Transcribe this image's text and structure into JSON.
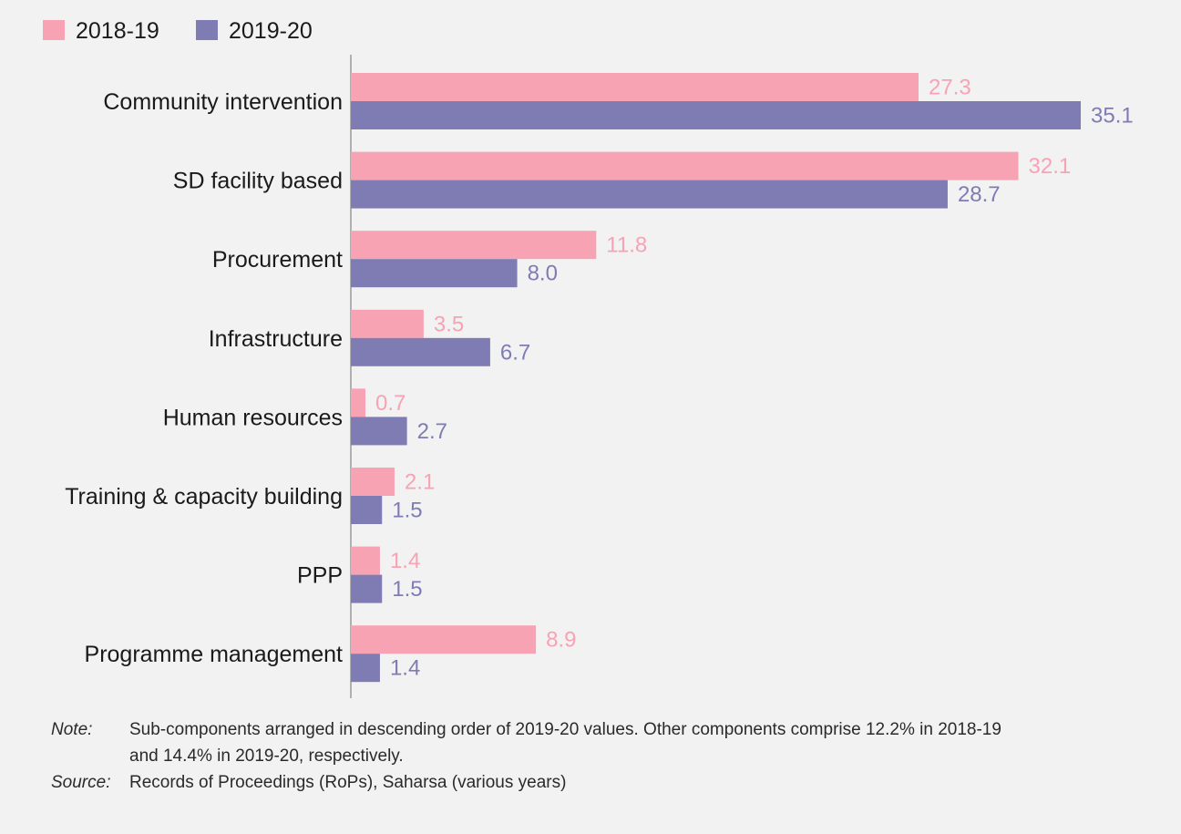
{
  "chart_data": {
    "type": "bar",
    "orientation": "horizontal",
    "categories": [
      "Community intervention",
      "SD facility based",
      "Procurement",
      "Infrastructure",
      "Human resources",
      "Training & capacity building",
      "PPP",
      "Programme management"
    ],
    "series": [
      {
        "name": "2018-19",
        "color": "#f7a3b4",
        "values": [
          27.3,
          32.1,
          11.8,
          3.5,
          0.7,
          2.1,
          1.4,
          8.9
        ]
      },
      {
        "name": "2019-20",
        "color": "#7f7cb4",
        "values": [
          35.1,
          28.7,
          8.0,
          6.7,
          2.7,
          1.5,
          1.5,
          1.4
        ]
      }
    ],
    "value_labels": [
      [
        "27.3",
        "32.1",
        "11.8",
        "3.5",
        "0.7",
        "2.1",
        "1.4",
        "8.9"
      ],
      [
        "35.1",
        "28.7",
        "8.0",
        "6.7",
        "2.7",
        "1.5",
        "1.5",
        "1.4"
      ]
    ],
    "xlim": [
      0,
      35.1
    ],
    "grid": false,
    "legend_position": "top-left",
    "axis_color": "#999999"
  },
  "notes": {
    "note_label": "Note:",
    "note_text": "Sub-components arranged in descending order of 2019-20 values. Other components comprise 12.2% in 2018-19 and 14.4% in 2019-20, respectively.",
    "source_label": "Source:",
    "source_text": "Records of Proceedings (RoPs), Saharsa (various years)"
  }
}
